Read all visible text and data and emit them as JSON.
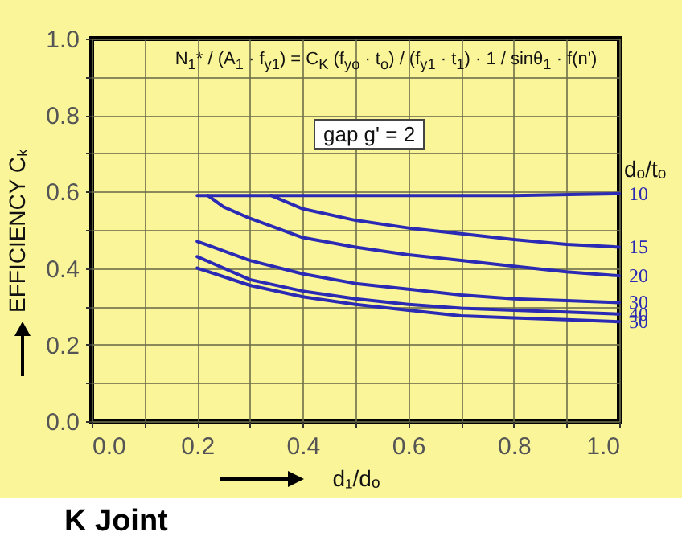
{
  "chart_data": {
    "type": "line",
    "title": "K Joint",
    "xlabel": "d₁/dₒ",
    "ylabel": "EFFICIENCY Cₖ",
    "legend_title": "dₒ/tₒ",
    "annotations": [
      "N$_{1}$* / (A$_{1}$ · f$_{y1}$) = C$_{K}$ (f$_{yo}$ · t$_{o}$) / (f$_{y1}$ · t$_{1}$) · 1 / sinθ$_{1}$ · f(n')",
      "gap g' = 2"
    ],
    "xlim": [
      0,
      1
    ],
    "ylim": [
      0,
      1
    ],
    "xticks": [
      {
        "value": 0,
        "label": "0.0"
      },
      {
        "value": 0.1,
        "label": null
      },
      0.2,
      {
        "value": 0.3,
        "label": null
      },
      0.4,
      {
        "value": 0.5,
        "label": null
      },
      0.6,
      {
        "value": 0.7,
        "label": null
      },
      0.8,
      {
        "value": 0.9,
        "label": null
      },
      {
        "value": 1,
        "label": "1.0"
      }
    ],
    "yticks": [
      {
        "value": 0,
        "label": "0.0"
      },
      {
        "value": 0.1,
        "label": null
      },
      0.2,
      {
        "value": 0.3,
        "label": null
      },
      0.4,
      {
        "value": 0.5,
        "label": null
      },
      0.6,
      {
        "value": 0.7,
        "label": null
      },
      0.8,
      {
        "value": 0.9,
        "label": null
      },
      {
        "value": 1,
        "label": "1.0"
      }
    ],
    "grid": true,
    "legend": false,
    "marker": "none",
    "line_style": "solid",
    "series": [
      {
        "name": "10",
        "color": "#2a2ab4",
        "x": [
          0.2,
          0.4,
          0.6,
          0.8,
          1.0
        ],
        "values": [
          0.59,
          0.59,
          0.59,
          0.59,
          0.595
        ]
      },
      {
        "name": "15",
        "color": "#2a2ab4",
        "x": [
          0.34,
          0.4,
          0.5,
          0.6,
          0.7,
          0.8,
          0.9,
          1.0
        ],
        "values": [
          0.59,
          0.555,
          0.525,
          0.505,
          0.49,
          0.475,
          0.462,
          0.455
        ]
      },
      {
        "name": "20",
        "color": "#2a2ab4",
        "x": [
          0.22,
          0.25,
          0.3,
          0.4,
          0.5,
          0.6,
          0.7,
          0.8,
          0.9,
          1.0
        ],
        "values": [
          0.59,
          0.56,
          0.53,
          0.48,
          0.455,
          0.435,
          0.42,
          0.405,
          0.39,
          0.38
        ]
      },
      {
        "name": "30",
        "color": "#2a2ab4",
        "x": [
          0.2,
          0.3,
          0.4,
          0.5,
          0.6,
          0.7,
          0.8,
          0.9,
          1.0
        ],
        "values": [
          0.47,
          0.42,
          0.385,
          0.36,
          0.345,
          0.33,
          0.32,
          0.315,
          0.31
        ]
      },
      {
        "name": "40",
        "color": "#2a2ab4",
        "x": [
          0.2,
          0.3,
          0.4,
          0.5,
          0.6,
          0.7,
          0.8,
          0.9,
          1.0
        ],
        "values": [
          0.43,
          0.37,
          0.34,
          0.32,
          0.305,
          0.295,
          0.29,
          0.285,
          0.28
        ]
      },
      {
        "name": "50",
        "color": "#2a2ab4",
        "x": [
          0.2,
          0.3,
          0.4,
          0.5,
          0.6,
          0.7,
          0.8,
          0.9,
          1.0
        ],
        "values": [
          0.4,
          0.355,
          0.325,
          0.305,
          0.29,
          0.275,
          0.27,
          0.265,
          0.26
        ]
      }
    ]
  }
}
